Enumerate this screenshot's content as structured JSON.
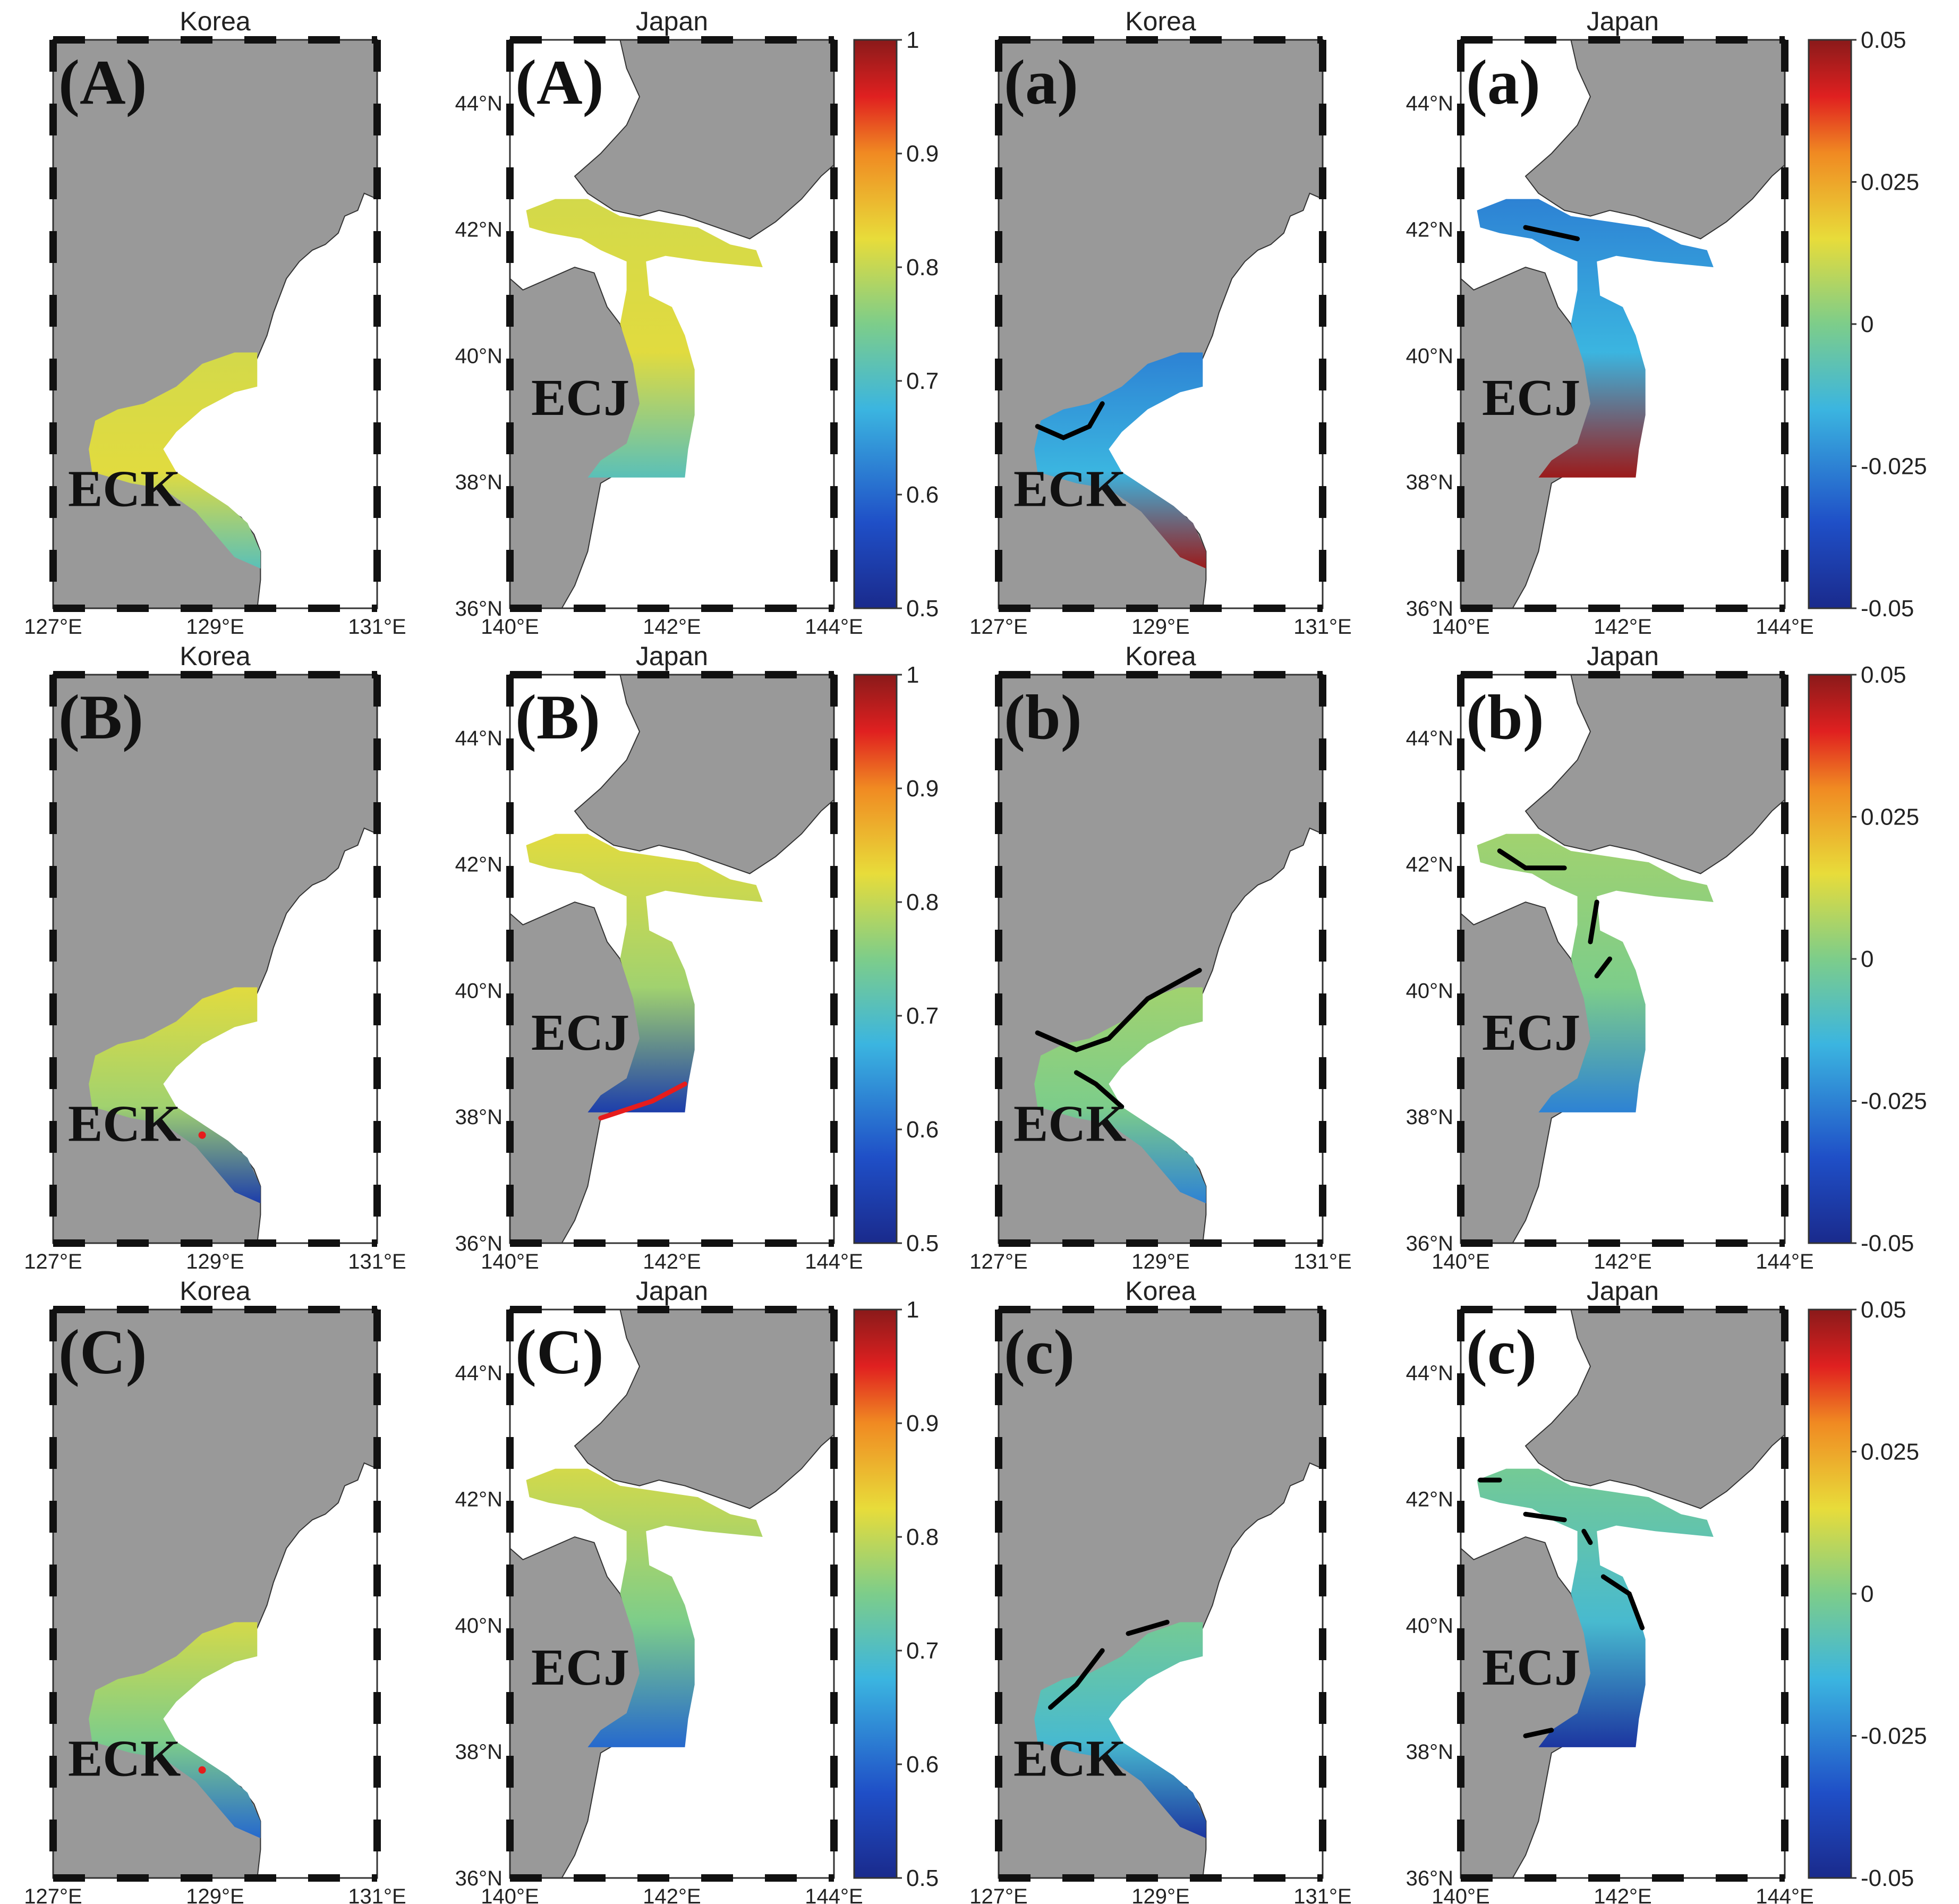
{
  "panels": [
    {
      "id": "A-korea",
      "title": "Korea",
      "letter": "(A)",
      "region": "ECK",
      "map": "korea",
      "field": "pA",
      "colorbar": null
    },
    {
      "id": "A-japan",
      "title": "Japan",
      "letter": "(A)",
      "region": "ECJ",
      "map": "japan",
      "field": "pA",
      "colorbar": "prob"
    },
    {
      "id": "a-korea",
      "title": "Korea",
      "letter": "(a)",
      "region": "ECK",
      "map": "korea",
      "field": "da",
      "colorbar": null
    },
    {
      "id": "a-japan",
      "title": "Japan",
      "letter": "(a)",
      "region": "ECJ",
      "map": "japan",
      "field": "da",
      "colorbar": "diff"
    },
    {
      "id": "B-korea",
      "title": "Korea",
      "letter": "(B)",
      "region": "ECK",
      "map": "korea",
      "field": "pB",
      "colorbar": null
    },
    {
      "id": "B-japan",
      "title": "Japan",
      "letter": "(B)",
      "region": "ECJ",
      "map": "japan",
      "field": "pB",
      "colorbar": "prob"
    },
    {
      "id": "b-korea",
      "title": "Korea",
      "letter": "(b)",
      "region": "ECK",
      "map": "korea",
      "field": "db",
      "colorbar": null
    },
    {
      "id": "b-japan",
      "title": "Japan",
      "letter": "(b)",
      "region": "ECJ",
      "map": "japan",
      "field": "db",
      "colorbar": "diff"
    },
    {
      "id": "C-korea",
      "title": "Korea",
      "letter": "(C)",
      "region": "ECK",
      "map": "korea",
      "field": "pC",
      "colorbar": null
    },
    {
      "id": "C-japan",
      "title": "Japan",
      "letter": "(C)",
      "region": "ECJ",
      "map": "japan",
      "field": "pC",
      "colorbar": "prob"
    },
    {
      "id": "c-korea",
      "title": "Korea",
      "letter": "(c)",
      "region": "ECK",
      "map": "korea",
      "field": "dc",
      "colorbar": null
    },
    {
      "id": "c-japan",
      "title": "Japan",
      "letter": "(c)",
      "region": "ECJ",
      "map": "japan",
      "field": "dc",
      "colorbar": "diff"
    }
  ],
  "axes": {
    "korea": {
      "x_ticks": [
        "127°E",
        "129°E",
        "131°E"
      ],
      "x_range": [
        127,
        131
      ],
      "y_range": [
        36,
        45
      ]
    },
    "japan": {
      "x_ticks": [
        "140°E",
        "142°E",
        "144°E"
      ],
      "y_ticks": [
        "36°N",
        "38°N",
        "40°N",
        "42°N",
        "44°N"
      ],
      "x_range": [
        140,
        144
      ],
      "y_range": [
        36,
        45
      ]
    }
  },
  "colorbars": {
    "prob": {
      "ticks": [
        "1",
        "0.9",
        "0.8",
        "0.7",
        "0.6",
        "0.5"
      ],
      "range": [
        0.5,
        1
      ]
    },
    "diff": {
      "ticks": [
        "0.05",
        "0.025",
        "0",
        "-0.025",
        "-0.05"
      ],
      "range": [
        -0.05,
        0.05
      ]
    }
  },
  "colors": {
    "land": "#999999",
    "cmap": "jet"
  }
}
